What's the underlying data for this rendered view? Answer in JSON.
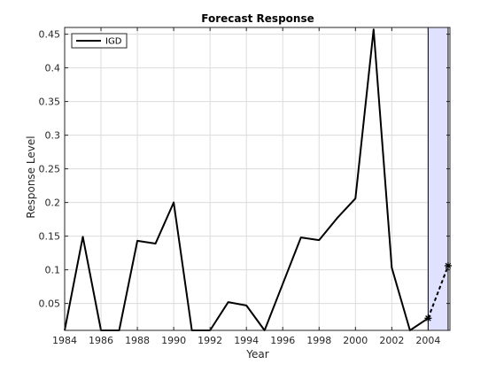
{
  "chart_data": {
    "type": "line",
    "title": "Forecast Response",
    "xlabel": "Year",
    "ylabel": "Response Level",
    "xlim": [
      1984,
      2005.2
    ],
    "ylim": [
      0.01,
      0.46
    ],
    "xticks": [
      1984,
      1986,
      1988,
      1990,
      1992,
      1994,
      1996,
      1998,
      2000,
      2002,
      2004
    ],
    "yticks": [
      0.05,
      0.1,
      0.15,
      0.2,
      0.25,
      0.3,
      0.35,
      0.4,
      0.45
    ],
    "grid": true,
    "legend_position": "top-left",
    "series": [
      {
        "name": "IGD",
        "style": "solid",
        "color": "#000000",
        "x": [
          1984,
          1985,
          1986,
          1987,
          1988,
          1989,
          1990,
          1991,
          1992,
          1993,
          1994,
          1995,
          1996,
          1997,
          1998,
          1999,
          2000,
          2001,
          2002,
          2003,
          2004
        ],
        "y": [
          0.01,
          0.149,
          0.01,
          0.01,
          0.143,
          0.139,
          0.2,
          0.01,
          0.01,
          0.052,
          0.047,
          0.01,
          0.079,
          0.148,
          0.144,
          0.177,
          0.206,
          0.457,
          0.103,
          0.01,
          0.028
        ]
      },
      {
        "style": "dashed",
        "marker": "star",
        "color": "#000000",
        "x": [
          2004,
          2005.1
        ],
        "y": [
          0.028,
          0.106
        ]
      }
    ],
    "highlight": {
      "x": [
        2004,
        2005.1
      ],
      "color": "#e0e0ff"
    }
  }
}
